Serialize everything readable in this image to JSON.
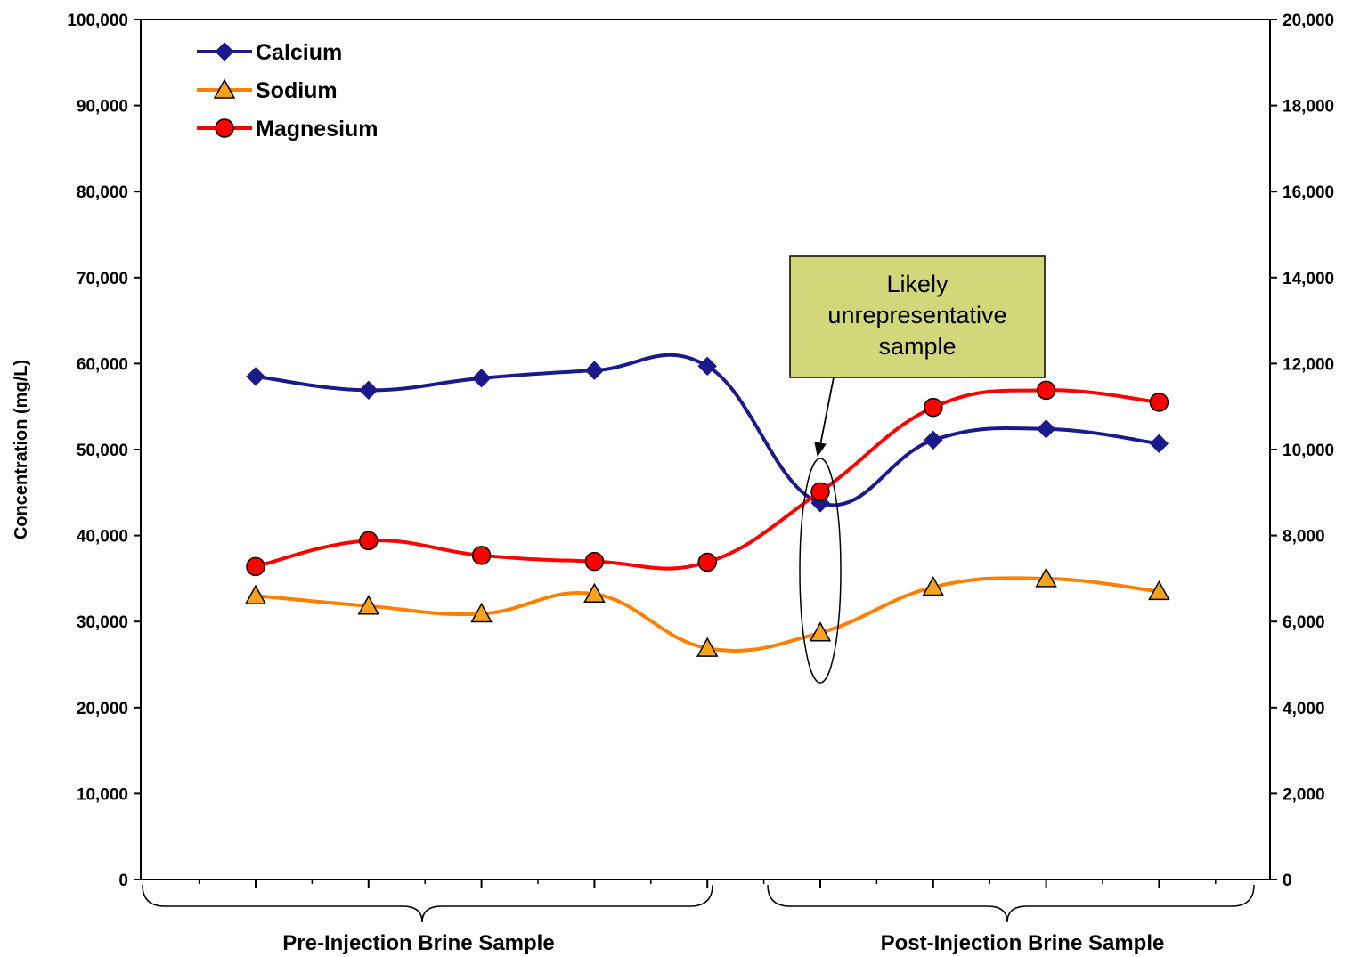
{
  "chart_data": {
    "type": "line",
    "title": "",
    "xlabel": "",
    "ylabel": "Concentration (mg/L)",
    "x": [
      1,
      2,
      3,
      4,
      5,
      6,
      7,
      8,
      9
    ],
    "ylim": [
      0,
      100000
    ],
    "y2lim": [
      0,
      20000
    ],
    "y_ticks": [
      "0",
      "10,000",
      "20,000",
      "30,000",
      "40,000",
      "50,000",
      "60,000",
      "70,000",
      "80,000",
      "90,000",
      "100,000"
    ],
    "y2_ticks": [
      "0",
      "2,000",
      "4,000",
      "6,000",
      "8,000",
      "10,000",
      "12,000",
      "14,000",
      "16,000",
      "18,000",
      "20,000"
    ],
    "series": [
      {
        "name": "Calcium",
        "axis": "left",
        "color": "#1a1a8c",
        "marker": "diamond",
        "values": [
          58500,
          56900,
          58300,
          59200,
          59700,
          43800,
          51100,
          52400,
          50700
        ]
      },
      {
        "name": "Sodium",
        "axis": "left",
        "color": "#ff7f00",
        "marker": "triangle",
        "values": [
          33000,
          31800,
          30900,
          33200,
          26900,
          28700,
          34000,
          35000,
          33500
        ]
      },
      {
        "name": "Magnesium",
        "axis": "right",
        "color": "#ff0000",
        "marker": "circle",
        "values": [
          7280,
          7880,
          7540,
          7400,
          7380,
          9020,
          10980,
          11380,
          11100
        ]
      }
    ],
    "legend_position": "top-left",
    "groups": [
      {
        "label": "Pre-Injection Brine Sample",
        "from": 1,
        "to": 5
      },
      {
        "label": "Post-Injection Brine Sample",
        "from": 6,
        "to": 9
      }
    ],
    "annotation": {
      "lines": [
        "Likely",
        "unrepresentative",
        "sample"
      ],
      "target_x": 6,
      "box_color": "#d4d67a"
    },
    "grid": false
  }
}
